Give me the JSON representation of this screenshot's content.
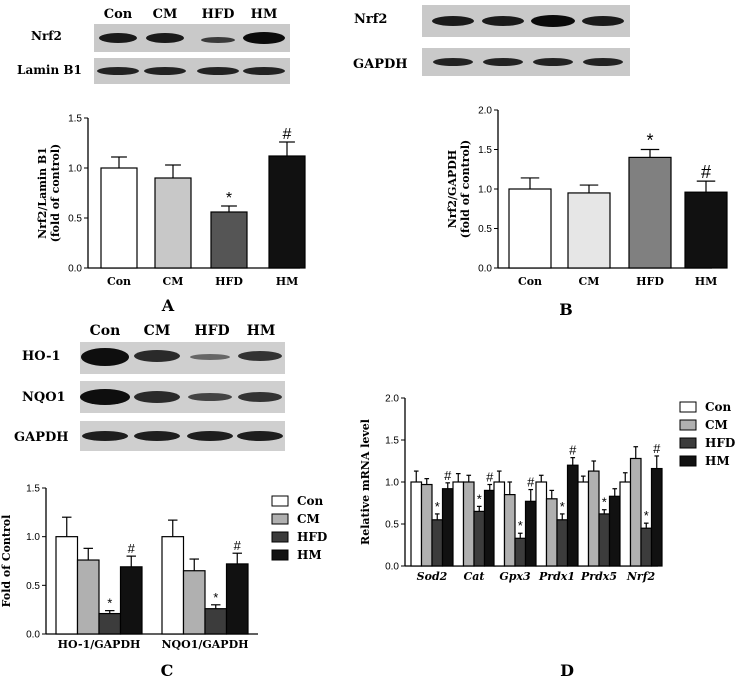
{
  "colors": {
    "con": "#ffffff",
    "cm": "#c8c8c8",
    "hfd": "#555555",
    "hm": "#111111",
    "cm_b": "#e6e6e6",
    "hfd_b": "#808080",
    "cm_c": "#b0b0b0",
    "hfd_c": "#3c3c3c"
  },
  "panel_letters": {
    "a": "A",
    "b": "B",
    "c": "C",
    "d": "D"
  },
  "blot_a": {
    "lanes": [
      "Con",
      "CM",
      "HFD",
      "HM"
    ],
    "rows": [
      "Nrf2",
      "Lamin B1"
    ]
  },
  "blot_b": {
    "rows": [
      "Nrf2",
      "GAPDH"
    ]
  },
  "blot_c": {
    "lanes": [
      "Con",
      "CM",
      "HFD",
      "HM"
    ],
    "rows": [
      "HO-1",
      "NQO1",
      "GAPDH"
    ]
  },
  "chart_data": [
    {
      "type": "bar",
      "panel": "A",
      "ylabel": "Nrf2/Lamin B1\n(fold of control)",
      "ylim": [
        0,
        1.5
      ],
      "yticks": [
        "0.0",
        "0.5",
        "1.0",
        "1.5"
      ],
      "categories": [
        "Con",
        "CM",
        "HFD",
        "HM"
      ],
      "values": [
        1.0,
        0.9,
        0.56,
        1.12
      ],
      "errors": [
        0.11,
        0.13,
        0.06,
        0.14
      ],
      "marks": [
        "",
        "",
        "*",
        "#"
      ]
    },
    {
      "type": "bar",
      "panel": "B",
      "ylabel": "Nrf2/GAPDH\n(fold of control)",
      "ylim": [
        0,
        2.0
      ],
      "yticks": [
        "0.0",
        "0.5",
        "1.0",
        "1.5",
        "2.0"
      ],
      "categories": [
        "Con",
        "CM",
        "HFD",
        "HM"
      ],
      "values": [
        1.0,
        0.95,
        1.4,
        0.96
      ],
      "errors": [
        0.14,
        0.1,
        0.1,
        0.14
      ],
      "marks": [
        "",
        "",
        "*",
        "#"
      ]
    },
    {
      "type": "bar",
      "panel": "C",
      "ylabel": "Fold of Control",
      "ylim": [
        0,
        1.5
      ],
      "yticks": [
        "0.0",
        "0.5",
        "1.0",
        "1.5"
      ],
      "categories": [
        "HO-1/GAPDH",
        "NQO1/GAPDH"
      ],
      "series": [
        {
          "name": "Con",
          "values": [
            1.0,
            1.0
          ],
          "errors": [
            0.2,
            0.17
          ],
          "marks": [
            "",
            ""
          ]
        },
        {
          "name": "CM",
          "values": [
            0.76,
            0.65
          ],
          "errors": [
            0.12,
            0.12
          ],
          "marks": [
            "",
            ""
          ]
        },
        {
          "name": "HFD",
          "values": [
            0.21,
            0.26
          ],
          "errors": [
            0.03,
            0.04
          ],
          "marks": [
            "*",
            "*"
          ]
        },
        {
          "name": "HM",
          "values": [
            0.69,
            0.72
          ],
          "errors": [
            0.11,
            0.11
          ],
          "marks": [
            "#",
            "#"
          ]
        }
      ],
      "legend": "right"
    },
    {
      "type": "bar",
      "panel": "D",
      "ylabel": "Relative mRNA level",
      "ylim": [
        0,
        2.0
      ],
      "yticks": [
        "0.0",
        "0.5",
        "1.0",
        "1.5",
        "2.0"
      ],
      "categories": [
        "Sod2",
        "Cat",
        "Gpx3",
        "Prdx1",
        "Prdx5",
        "Nrf2"
      ],
      "series": [
        {
          "name": "Con",
          "values": [
            1.0,
            1.0,
            1.0,
            1.0,
            1.0,
            1.0
          ],
          "errors": [
            0.13,
            0.1,
            0.13,
            0.08,
            0.07,
            0.11
          ],
          "marks": [
            "",
            "",
            "",
            "",
            "",
            ""
          ]
        },
        {
          "name": "CM",
          "values": [
            0.97,
            1.0,
            0.85,
            0.8,
            1.13,
            1.28
          ],
          "errors": [
            0.07,
            0.08,
            0.15,
            0.1,
            0.12,
            0.14
          ],
          "marks": [
            "",
            "",
            "",
            "",
            "",
            ""
          ]
        },
        {
          "name": "HFD",
          "values": [
            0.55,
            0.65,
            0.33,
            0.55,
            0.62,
            0.45
          ],
          "errors": [
            0.07,
            0.06,
            0.06,
            0.07,
            0.05,
            0.06
          ],
          "marks": [
            "*",
            "*",
            "*",
            "*",
            "*",
            "*"
          ]
        },
        {
          "name": "HM",
          "values": [
            0.92,
            0.9,
            0.77,
            1.2,
            0.83,
            1.16
          ],
          "errors": [
            0.07,
            0.07,
            0.14,
            0.09,
            0.09,
            0.15
          ],
          "marks": [
            "#",
            "#",
            "#",
            "#",
            "",
            "#"
          ]
        }
      ],
      "legend": "right"
    }
  ]
}
